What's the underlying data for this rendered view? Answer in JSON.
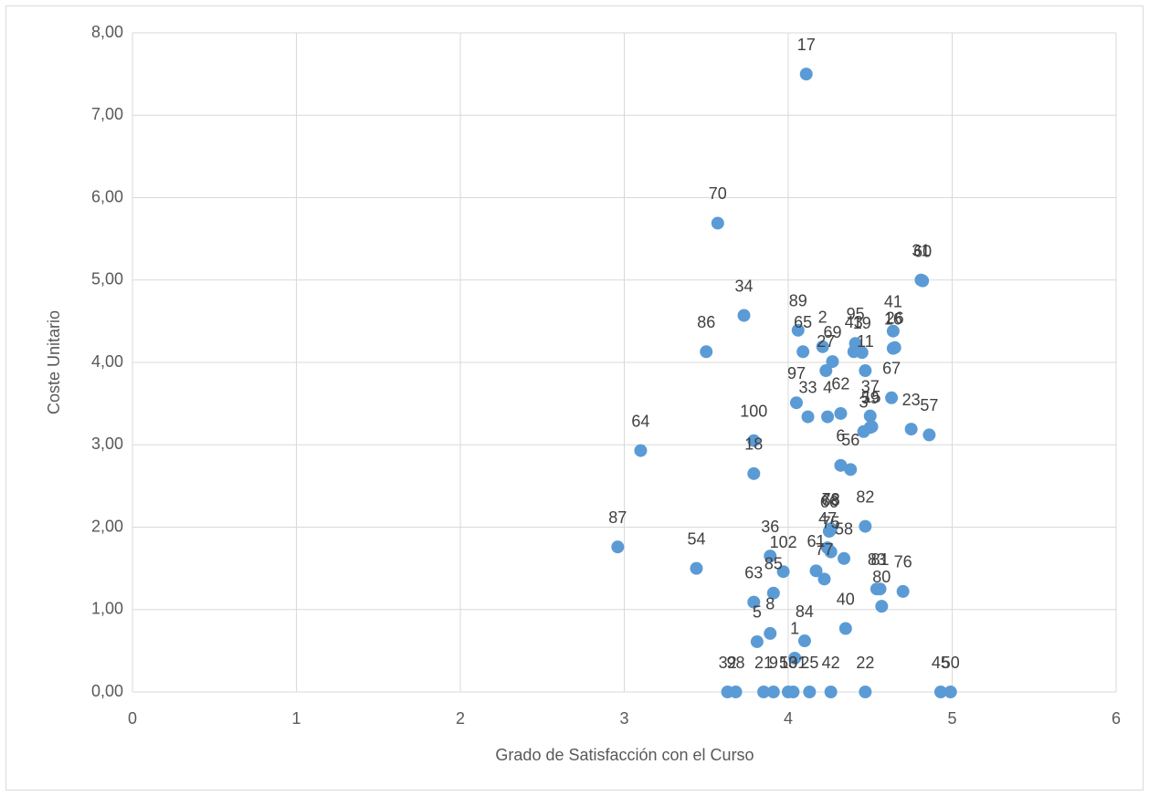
{
  "chart_data": {
    "type": "scatter",
    "x_label": "Grado de Satisfacción con el Curso",
    "y_label": "Coste Unitario",
    "color": "#5b9bd5",
    "grid": true,
    "xlim": [
      0,
      6
    ],
    "xticks": [
      0,
      1,
      2,
      3,
      4,
      5,
      6
    ],
    "ylim": [
      0,
      8
    ],
    "yticks": [
      {
        "value": 0,
        "label": "0,00"
      },
      {
        "value": 1,
        "label": "1,00"
      },
      {
        "value": 2,
        "label": "2,00"
      },
      {
        "value": 3,
        "label": "3,00"
      },
      {
        "value": 4,
        "label": "4,00"
      },
      {
        "value": 5,
        "label": "5,00"
      },
      {
        "value": 6,
        "label": "6,00"
      },
      {
        "value": 7,
        "label": "7,00"
      },
      {
        "value": 8,
        "label": "8,00"
      }
    ],
    "labels": [
      "17",
      "70",
      "31",
      "60",
      "34",
      "86",
      "89",
      "65",
      "2",
      "69",
      "27",
      "95",
      "43",
      "19",
      "41",
      "26",
      "11",
      "16",
      "67",
      "23",
      "57",
      "97",
      "33",
      "4",
      "62",
      "37",
      "59",
      "3",
      "15",
      "100",
      "64",
      "18",
      "6",
      "56",
      "87",
      "54",
      "36",
      "102",
      "85",
      "63",
      "8",
      "5",
      "84",
      "1",
      "68",
      "66",
      "78",
      "58",
      "47",
      "75",
      "61",
      "77",
      "40",
      "82",
      "83",
      "81",
      "80",
      "76",
      "32",
      "98",
      "21",
      "9",
      "53",
      "101",
      "25",
      "42",
      "22",
      "45",
      "50"
    ],
    "x": [
      4.11,
      3.57,
      4.81,
      4.82,
      3.73,
      3.5,
      4.06,
      4.09,
      4.21,
      4.27,
      4.23,
      4.41,
      4.4,
      4.45,
      4.64,
      4.65,
      4.47,
      4.64,
      4.63,
      4.75,
      4.86,
      4.05,
      4.12,
      4.24,
      4.32,
      4.5,
      4.5,
      4.46,
      4.51,
      3.79,
      3.1,
      3.79,
      4.32,
      4.38,
      2.96,
      3.44,
      3.89,
      3.97,
      3.91,
      3.79,
      3.89,
      3.81,
      4.1,
      4.04,
      4.26,
      4.25,
      4.26,
      4.34,
      4.24,
      4.26,
      4.17,
      4.22,
      4.35,
      4.47,
      4.54,
      4.56,
      4.57,
      4.7,
      3.63,
      3.68,
      3.85,
      3.91,
      4.0,
      4.03,
      4.13,
      4.26,
      4.47,
      4.93,
      4.99
    ],
    "values": [
      7.5,
      5.69,
      5.0,
      4.99,
      4.57,
      4.13,
      4.39,
      4.13,
      4.19,
      4.01,
      3.9,
      4.23,
      4.13,
      4.12,
      4.38,
      4.18,
      3.9,
      4.17,
      3.57,
      3.19,
      3.12,
      3.51,
      3.34,
      3.34,
      3.38,
      3.35,
      3.21,
      3.16,
      3.22,
      3.05,
      2.93,
      2.65,
      2.75,
      2.7,
      1.76,
      1.5,
      1.65,
      1.46,
      1.2,
      1.09,
      0.71,
      0.61,
      0.62,
      0.41,
      1.97,
      1.95,
      1.98,
      1.62,
      1.75,
      1.7,
      1.47,
      1.37,
      0.77,
      2.01,
      1.25,
      1.25,
      1.04,
      1.22,
      0,
      0,
      0,
      0,
      0,
      0,
      0,
      0,
      0,
      0,
      0
    ]
  }
}
